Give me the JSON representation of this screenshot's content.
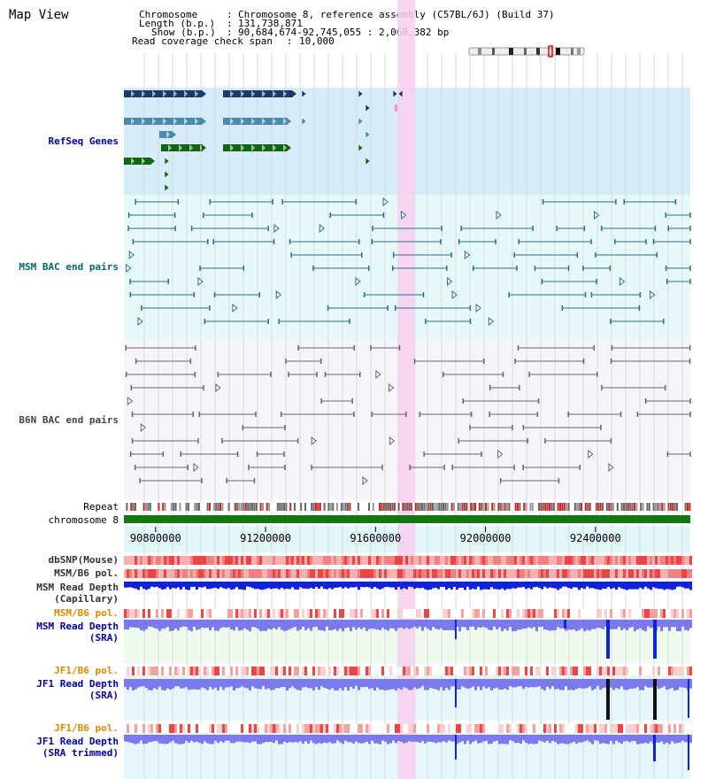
{
  "header": {
    "title": "Map View",
    "chromosome_key": "Chromosome",
    "chromosome_value": "Chromosome 8, reference assembly (C57BL/6J) (Build 37)",
    "length_key": "Length (b.p.)",
    "length_value": "131,738,871",
    "show_key": "Show (b.p.)",
    "show_value": "90,684,674-92,745,055 : 2,060,382 bp",
    "coverage_key": "Read coverage check span",
    "coverage_value": "10,000"
  },
  "tracks": {
    "refseq": "RefSeq Genes",
    "msm_bac": "MSM BAC end pairs",
    "b6n_bac": "B6N BAC end pairs",
    "repeat": "Repeat",
    "chromosome": "chromosome 8",
    "dbsnp": "dbSNP(Mouse)",
    "msm_b6_pol_1": "MSM/B6 pol.",
    "msm_depth_cap_1": "MSM Read Depth",
    "msm_depth_cap_2": "(Capillary)",
    "msm_b6_pol_2": "MSM/B6 pol.",
    "msm_depth_sra_1": "MSM Read Depth",
    "msm_depth_sra_2": "(SRA)",
    "jf1_b6_pol_1": "JF1/B6 pol.",
    "jf1_depth_sra_1": "JF1 Read Depth",
    "jf1_depth_sra_2": "(SRA)",
    "jf1_b6_pol_2": "JF1/B6 pol.",
    "jf1_depth_trim_1": "JF1 Read Depth",
    "jf1_depth_trim_2": "(SRA trimmed)"
  },
  "axis": {
    "start_bp": 90684674,
    "end_bp": 92745055,
    "ticks": [
      "90800000",
      "91200000",
      "91600000",
      "92000000",
      "92400000"
    ],
    "tick_values": [
      90800000,
      91200000,
      91600000,
      92000000,
      92400000
    ]
  },
  "highlight": {
    "start_bp": 91680000,
    "end_bp": 91745000
  },
  "colors": {
    "label_blue": "#0000aa",
    "label_teal": "#006677",
    "label_gray": "#444444",
    "label_orange": "#dd8800",
    "refseq_bg": "#d6ecf8",
    "msm_bg": "#e6f8f8",
    "b6n_bg": "#f6f6fa",
    "highlight": "#f8d0f0",
    "gene_dark": "#1a3a6a",
    "gene_mid": "#4a8aaa",
    "gene_green": "#116611",
    "msm_pair": "#2a6f8a",
    "b6n_pair": "#666666",
    "depth_blue": "#1122dd",
    "depth_light": "#7a7aee",
    "chromosome": "#117711"
  }
}
